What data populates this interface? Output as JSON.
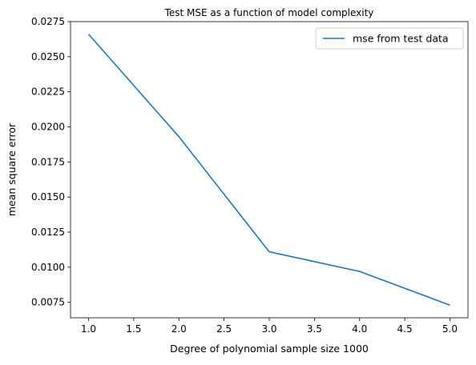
{
  "chart_data": {
    "type": "line",
    "title": "Test MSE as a function of model complexity",
    "xlabel": "Degree of polynomial sample size 1000",
    "ylabel": "mean square error",
    "xlim": [
      0.8,
      5.2
    ],
    "ylim": [
      0.0064,
      0.0275
    ],
    "x_ticks": [
      "1.0",
      "1.5",
      "2.0",
      "2.5",
      "3.0",
      "3.5",
      "4.0",
      "4.5",
      "5.0"
    ],
    "y_ticks": [
      "0.0075",
      "0.0100",
      "0.0125",
      "0.0150",
      "0.0175",
      "0.0200",
      "0.0225",
      "0.0250",
      "0.0275"
    ],
    "grid": false,
    "legend_position": "top-right",
    "series": [
      {
        "name": "mse from test data",
        "color": "#1f77b4",
        "x": [
          1,
          2,
          3,
          4,
          5
        ],
        "y": [
          0.0266,
          0.0193,
          0.0111,
          0.0097,
          0.0073
        ]
      }
    ]
  }
}
